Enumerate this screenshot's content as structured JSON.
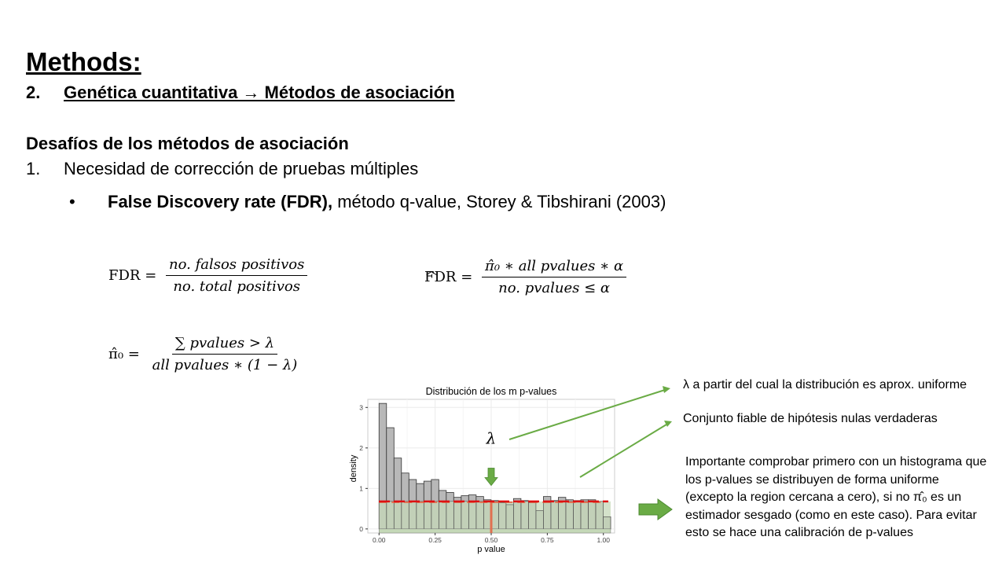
{
  "slide": {
    "title": "Methods:",
    "subtitle_num": "2.",
    "subtitle_text": "Genética cuantitativa → Métodos de asociación",
    "section_heading": "Desafíos de los métodos de asociación",
    "list_num": "1.",
    "list_text": "Necesidad de corrección de pruebas múltiples",
    "bullet_symbol": "•",
    "bullet_bold": "False Discovery rate (FDR),",
    "bullet_rest": " método q-value, Storey & Tibshirani (2003)"
  },
  "formulas": {
    "fdr": {
      "lhs": "FDR =",
      "num": "no. falsos positivos",
      "den": "no. total positivos"
    },
    "fdr_hat": {
      "lhs": "FDR =",
      "num": "π̂₀ ∗ all pvalues ∗  α",
      "den": "no. pvalues  ≤  α"
    },
    "pi0": {
      "lhs": "π̂₀ =",
      "num": "∑ pvalues  >  λ",
      "den": "all pvalues ∗ (1 − λ)"
    }
  },
  "annotations": {
    "lambda_note": "λ a partir del cual la distribución es aprox. uniforme",
    "null_note": "Conjunto fiable de hipótesis nulas verdaderas",
    "important_note": "Importante comprobar primero con un histograma que los p-values se distribuyen de forma uniforme (excepto la region cercana a cero), si no π̂₀ es un estimador sesgado (como en este caso). Para evitar esto se hace una calibración de p-values"
  },
  "chart_data": {
    "type": "bar",
    "title": "Distribución de los m p-values",
    "xlabel": "p value",
    "ylabel": "density",
    "xlim": [
      -0.05,
      1.05
    ],
    "ylim": [
      -0.1,
      3.2
    ],
    "xticks": [
      "0.00",
      "0.25",
      "0.50",
      "0.75",
      "1.00"
    ],
    "yticks": [
      "0",
      "1",
      "2",
      "3"
    ],
    "bin_width": 0.0333,
    "values": [
      3.1,
      2.5,
      1.75,
      1.38,
      1.22,
      1.12,
      1.18,
      1.22,
      0.95,
      0.9,
      0.78,
      0.82,
      0.84,
      0.8,
      0.72,
      0.7,
      0.65,
      0.6,
      0.75,
      0.7,
      0.65,
      0.45,
      0.8,
      0.7,
      0.78,
      0.72,
      0.7,
      0.72,
      0.72,
      0.68,
      0.3
    ],
    "pi0_line": 0.68,
    "lambda_marker_x": 0.5,
    "lambda_label": "λ",
    "colors": {
      "hist_fill": "#b8b8b8",
      "uniform_fill": "#c5d8b8",
      "pi0_line": "#dd1111",
      "lambda_line": "#e07050",
      "arrow": "#6aab45"
    }
  }
}
